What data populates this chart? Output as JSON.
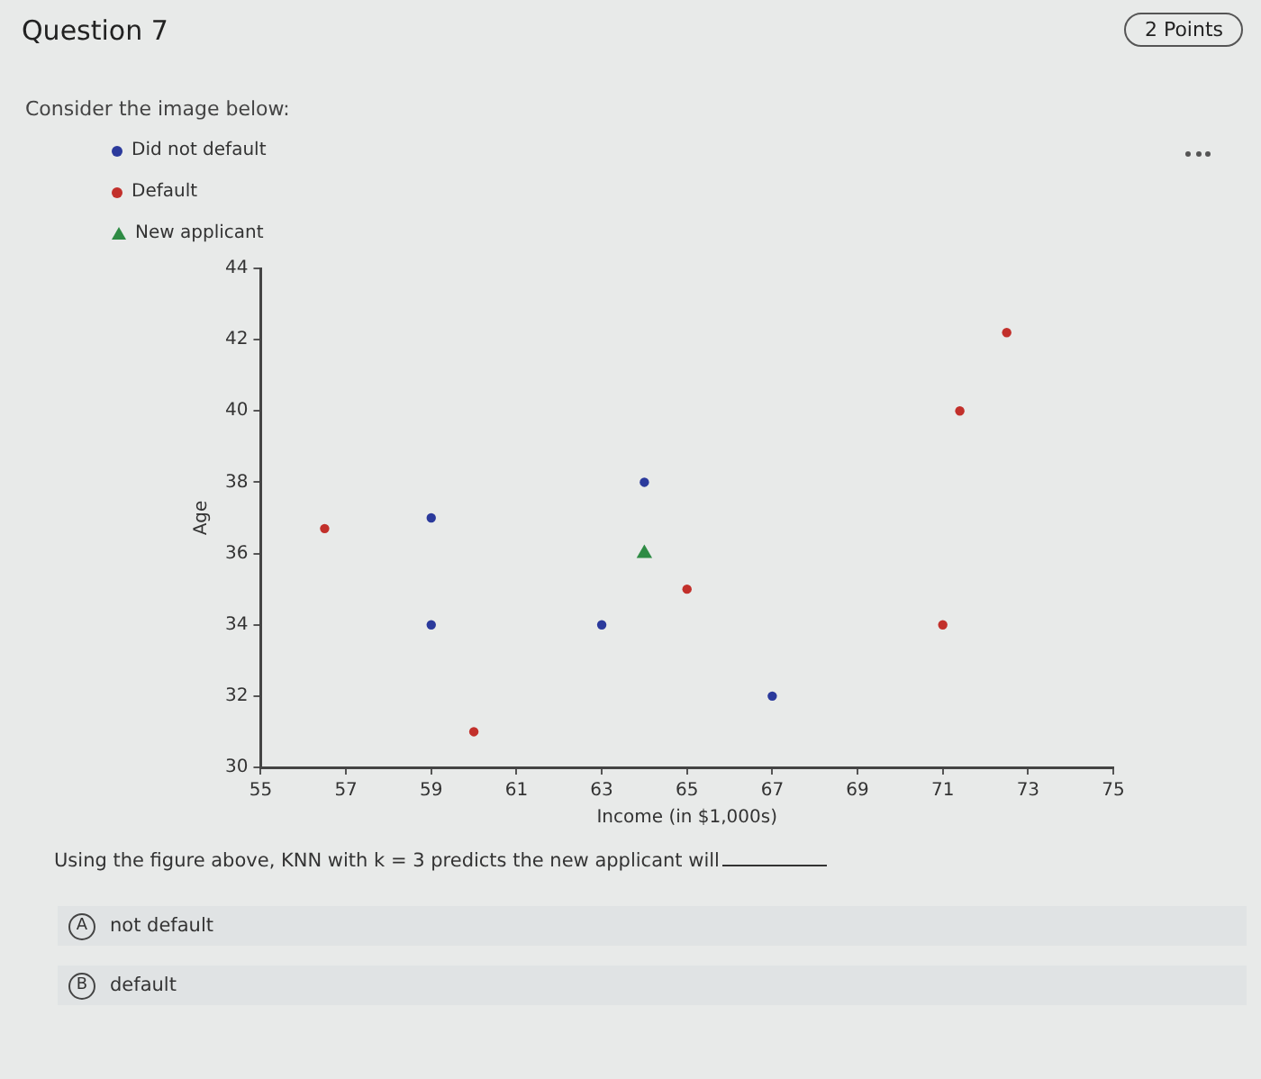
{
  "chart_data": {
    "type": "scatter",
    "title": "Question 7",
    "subtitle": "Consider the image below:",
    "xlabel": "Income (in $1,000s)",
    "ylabel": "Age",
    "series": [
      {
        "name": "Did not default",
        "color": "#2b3a9c",
        "marker": "circle",
        "x": [
          59,
          59,
          63,
          64,
          67
        ],
        "values": [
          37,
          34,
          34,
          38,
          32
        ]
      },
      {
        "name": "Default",
        "color": "#c2302b",
        "marker": "circle",
        "x": [
          56.5,
          60,
          65,
          71,
          71.4,
          72.5
        ],
        "values": [
          36.7,
          31,
          35,
          34,
          40,
          42.2
        ]
      },
      {
        "name": "New applicant",
        "color": "#2e8b44",
        "marker": "triangle",
        "x": [
          64
        ],
        "values": [
          36
        ]
      }
    ],
    "xlim": [
      55,
      75
    ],
    "xticks": [
      55,
      57,
      59,
      61,
      63,
      65,
      67,
      69,
      71,
      73,
      75
    ],
    "ylim": [
      30,
      44
    ],
    "yticks": [
      30,
      32,
      34,
      36,
      38,
      40,
      42,
      44
    ],
    "grid": false,
    "legend": "top left",
    "annotations": [
      "2 Points",
      "Using the figure above, KNN with k = 3 predicts the new applicant will",
      "A",
      "not default",
      "B",
      "default"
    ]
  }
}
